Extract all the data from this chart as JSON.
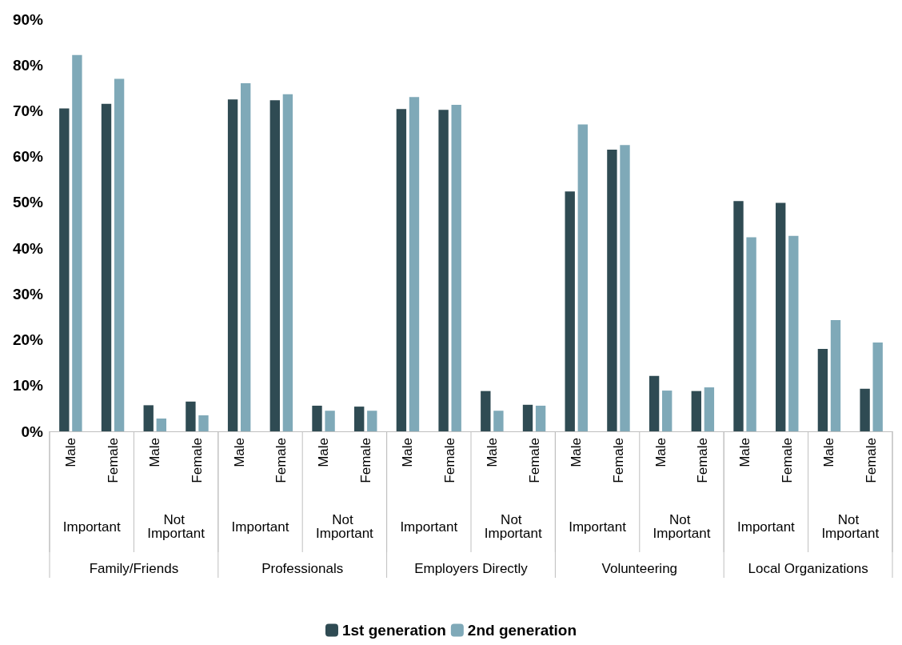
{
  "chart_data": {
    "type": "bar",
    "categories": [
      "Male",
      "Female",
      "Male",
      "Female",
      "Male",
      "Female",
      "Male",
      "Female",
      "Male",
      "Female",
      "Male",
      "Female",
      "Male",
      "Female",
      "Male",
      "Female",
      "Male",
      "Female",
      "Male",
      "Female"
    ],
    "annotations": [
      "Important",
      "Not Important",
      "Important",
      "Not Important",
      "Important",
      "Not Important",
      "Important",
      "Not Important",
      "Important",
      "Not Important",
      "Family/Friends",
      "Professionals",
      "Employers Directly",
      "Volunteering",
      "Local Organizations"
    ],
    "series": [
      {
        "name": "1st generation",
        "color": "#2f4b53",
        "values": [
          70.5,
          71.5,
          5.7,
          6.5,
          72.5,
          72.3,
          5.6,
          5.4,
          70.4,
          70.2,
          8.8,
          5.8,
          52.4,
          61.5,
          12.1,
          8.8,
          50.3,
          49.9,
          18,
          9.3
        ]
      },
      {
        "name": "2nd generation",
        "color": "#7fa9b8",
        "values": [
          82.2,
          77,
          2.8,
          3.5,
          76,
          73.6,
          4.5,
          4.5,
          73,
          71.3,
          4.5,
          5.6,
          67,
          62.5,
          8.9,
          9.6,
          42.4,
          42.7,
          24.3,
          19.4
        ]
      }
    ],
    "ylim": [
      0,
      90
    ],
    "yticks": [
      {
        "value": 0,
        "label": "0%"
      },
      {
        "value": 10,
        "label": "10%"
      },
      {
        "value": 20,
        "label": "20%"
      },
      {
        "value": 30,
        "label": "30%"
      },
      {
        "value": 40,
        "label": "40%"
      },
      {
        "value": 50,
        "label": "50%"
      },
      {
        "value": 60,
        "label": "60%"
      },
      {
        "value": 70,
        "label": "70%"
      },
      {
        "value": 80,
        "label": "80%"
      },
      {
        "value": 90,
        "label": "90%"
      }
    ],
    "grid": false,
    "legend": "bottom"
  }
}
